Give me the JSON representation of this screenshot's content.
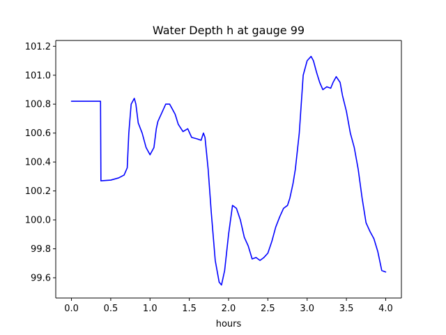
{
  "chart_data": {
    "type": "line",
    "title": "Water Depth h at gauge 99",
    "xlabel": "hours",
    "ylabel": "",
    "xlim": [
      -0.2,
      4.2
    ],
    "ylim": [
      99.46,
      101.24
    ],
    "grid": false,
    "legend": "none",
    "x_ticks": [
      {
        "value": 0.0,
        "label": "0.0"
      },
      {
        "value": 0.5,
        "label": "0.5"
      },
      {
        "value": 1.0,
        "label": "1.0"
      },
      {
        "value": 1.5,
        "label": "1.5"
      },
      {
        "value": 2.0,
        "label": "2.0"
      },
      {
        "value": 2.5,
        "label": "2.5"
      },
      {
        "value": 3.0,
        "label": "3.0"
      },
      {
        "value": 3.5,
        "label": "3.5"
      },
      {
        "value": 4.0,
        "label": "4.0"
      }
    ],
    "y_ticks": [
      {
        "value": 99.6,
        "label": "99.6"
      },
      {
        "value": 99.8,
        "label": "99.8"
      },
      {
        "value": 100.0,
        "label": "100.0"
      },
      {
        "value": 100.2,
        "label": "100.2"
      },
      {
        "value": 100.4,
        "label": "100.4"
      },
      {
        "value": 100.6,
        "label": "100.6"
      },
      {
        "value": 100.8,
        "label": "100.8"
      },
      {
        "value": 101.0,
        "label": "101.0"
      },
      {
        "value": 101.2,
        "label": "101.2"
      }
    ],
    "series": [
      {
        "color": "#0000ff",
        "x": [
          0.0,
          0.2,
          0.37,
          0.375,
          0.5,
          0.6,
          0.67,
          0.71,
          0.73,
          0.76,
          0.8,
          0.82,
          0.85,
          0.9,
          0.95,
          1.0,
          1.05,
          1.08,
          1.1,
          1.15,
          1.2,
          1.25,
          1.28,
          1.32,
          1.36,
          1.42,
          1.48,
          1.53,
          1.6,
          1.65,
          1.68,
          1.7,
          1.74,
          1.78,
          1.83,
          1.88,
          1.91,
          1.95,
          2.0,
          2.05,
          2.1,
          2.15,
          2.2,
          2.25,
          2.3,
          2.35,
          2.4,
          2.45,
          2.5,
          2.55,
          2.6,
          2.65,
          2.7,
          2.75,
          2.78,
          2.82,
          2.85,
          2.9,
          2.95,
          3.0,
          3.05,
          3.08,
          3.12,
          3.16,
          3.2,
          3.25,
          3.3,
          3.33,
          3.37,
          3.42,
          3.45,
          3.5,
          3.55,
          3.6,
          3.65,
          3.7,
          3.75,
          3.8,
          3.85,
          3.9,
          3.95,
          4.0
        ],
        "values": [
          100.82,
          100.82,
          100.82,
          100.27,
          100.275,
          100.29,
          100.31,
          100.36,
          100.6,
          100.8,
          100.84,
          100.8,
          100.67,
          100.6,
          100.5,
          100.45,
          100.5,
          100.63,
          100.68,
          100.74,
          100.8,
          100.8,
          100.77,
          100.73,
          100.66,
          100.61,
          100.63,
          100.57,
          100.56,
          100.55,
          100.6,
          100.57,
          100.35,
          100.05,
          99.72,
          99.57,
          99.55,
          99.65,
          99.9,
          100.1,
          100.08,
          100.0,
          99.88,
          99.82,
          99.73,
          99.74,
          99.72,
          99.74,
          99.77,
          99.85,
          99.95,
          100.02,
          100.08,
          100.1,
          100.15,
          100.25,
          100.35,
          100.6,
          101.0,
          101.1,
          101.13,
          101.1,
          101.02,
          100.95,
          100.9,
          100.92,
          100.91,
          100.95,
          100.99,
          100.95,
          100.86,
          100.75,
          100.6,
          100.5,
          100.35,
          100.15,
          99.98,
          99.92,
          99.87,
          99.78,
          99.65,
          99.64
        ]
      }
    ]
  }
}
